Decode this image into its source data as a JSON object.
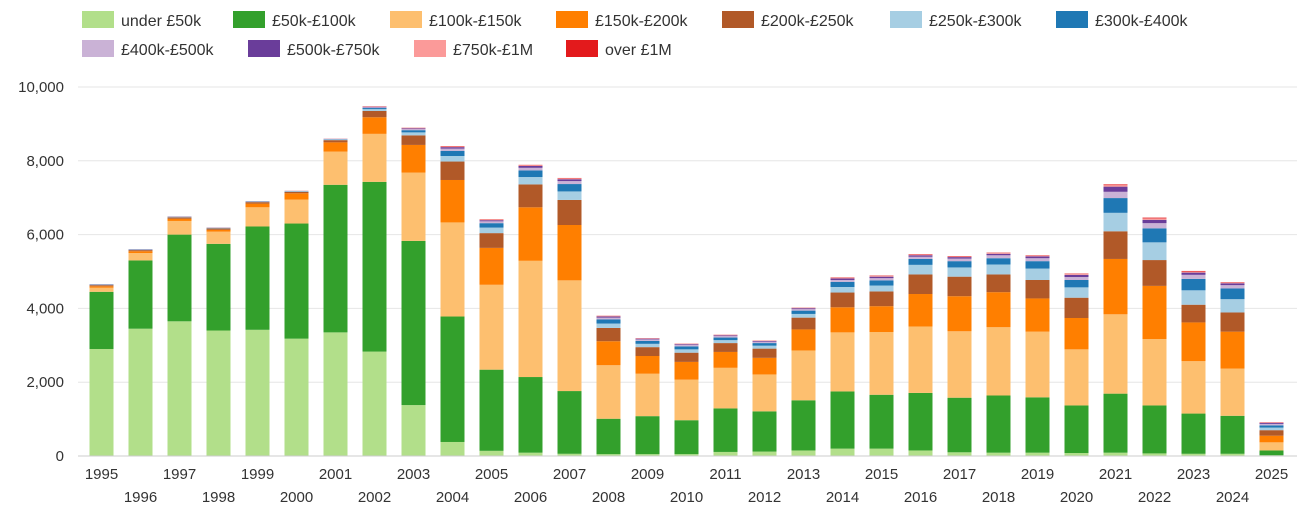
{
  "chart_data": {
    "type": "bar",
    "stacked": true,
    "title": "",
    "xlabel": "",
    "ylabel": "",
    "ylim": [
      0,
      10000
    ],
    "yticks": [
      "0",
      "2,000",
      "4,000",
      "6,000",
      "8,000",
      "10,000"
    ],
    "ytick_values": [
      0,
      2000,
      4000,
      6000,
      8000,
      10000
    ],
    "grid": true,
    "legend_position": "top",
    "categories": [
      "1995",
      "1996",
      "1997",
      "1998",
      "1999",
      "2000",
      "2001",
      "2002",
      "2003",
      "2004",
      "2005",
      "2006",
      "2007",
      "2008",
      "2009",
      "2010",
      "2011",
      "2012",
      "2013",
      "2014",
      "2015",
      "2016",
      "2017",
      "2018",
      "2019",
      "2020",
      "2021",
      "2022",
      "2023",
      "2024",
      "2025"
    ],
    "series": [
      {
        "name": "under £50k",
        "color": "#b2df8a",
        "values": [
          2900,
          3450,
          3650,
          3400,
          3420,
          3180,
          3350,
          2830,
          1380,
          380,
          140,
          90,
          60,
          50,
          50,
          50,
          110,
          120,
          150,
          200,
          200,
          150,
          100,
          90,
          90,
          80,
          90,
          70,
          60,
          60,
          20
        ]
      },
      {
        "name": "£50k-£100k",
        "color": "#33a02c",
        "values": [
          1550,
          1850,
          2350,
          2350,
          2800,
          3120,
          4000,
          4600,
          4450,
          3400,
          2200,
          2050,
          1700,
          960,
          1030,
          920,
          1180,
          1090,
          1360,
          1550,
          1460,
          1560,
          1480,
          1550,
          1500,
          1290,
          1600,
          1300,
          1090,
          1030,
          130
        ]
      },
      {
        "name": "£100k-£150k",
        "color": "#fdbf6f",
        "values": [
          110,
          200,
          370,
          330,
          520,
          650,
          900,
          1300,
          1850,
          2550,
          2300,
          3150,
          3000,
          1450,
          1150,
          1100,
          1100,
          1000,
          1350,
          1600,
          1700,
          1800,
          1800,
          1850,
          1780,
          1520,
          2150,
          1800,
          1420,
          1280,
          220
        ]
      },
      {
        "name": "£150k-£200k",
        "color": "#ff7f00",
        "values": [
          40,
          50,
          60,
          50,
          100,
          170,
          250,
          450,
          750,
          1150,
          1000,
          1450,
          1500,
          650,
          480,
          480,
          430,
          450,
          570,
          680,
          700,
          880,
          950,
          950,
          900,
          850,
          1500,
          1440,
          1050,
          1000,
          180
        ]
      },
      {
        "name": "£200k-£250k",
        "color": "#b15928",
        "values": [
          30,
          30,
          35,
          35,
          40,
          40,
          60,
          170,
          260,
          500,
          400,
          620,
          680,
          360,
          240,
          250,
          240,
          250,
          320,
          400,
          400,
          530,
          530,
          480,
          500,
          550,
          750,
          700,
          480,
          520,
          150
        ]
      },
      {
        "name": "£250k-£300k",
        "color": "#a6cee3",
        "values": [
          10,
          10,
          10,
          10,
          10,
          10,
          15,
          50,
          80,
          150,
          150,
          200,
          230,
          120,
          90,
          90,
          80,
          80,
          100,
          150,
          160,
          260,
          250,
          270,
          310,
          280,
          500,
          480,
          390,
          360,
          70
        ]
      },
      {
        "name": "£300k-£400k",
        "color": "#1f78b4",
        "values": [
          8,
          8,
          8,
          8,
          8,
          8,
          10,
          30,
          60,
          140,
          120,
          180,
          200,
          110,
          80,
          80,
          70,
          70,
          90,
          140,
          140,
          160,
          170,
          170,
          200,
          200,
          400,
          380,
          310,
          290,
          60
        ]
      },
      {
        "name": "£400k-£500k",
        "color": "#cab2d6",
        "values": [
          4,
          4,
          4,
          4,
          4,
          4,
          5,
          20,
          30,
          60,
          50,
          70,
          80,
          50,
          40,
          40,
          40,
          35,
          40,
          50,
          60,
          60,
          70,
          80,
          80,
          80,
          170,
          140,
          110,
          90,
          40
        ]
      },
      {
        "name": "£500k-£750k",
        "color": "#6a3d9a",
        "values": [
          3,
          3,
          3,
          3,
          3,
          3,
          4,
          15,
          20,
          40,
          30,
          50,
          50,
          30,
          20,
          20,
          20,
          20,
          25,
          40,
          40,
          40,
          40,
          40,
          50,
          60,
          140,
          90,
          60,
          50,
          30
        ]
      },
      {
        "name": "£750k-£1M",
        "color": "#fb9a99",
        "values": [
          2,
          2,
          2,
          2,
          2,
          2,
          3,
          10,
          10,
          20,
          15,
          20,
          25,
          15,
          10,
          10,
          10,
          10,
          10,
          20,
          20,
          20,
          20,
          20,
          20,
          25,
          40,
          40,
          30,
          20,
          15
        ]
      },
      {
        "name": "over £1M",
        "color": "#e31a1c",
        "values": [
          1,
          1,
          1,
          1,
          1,
          1,
          2,
          5,
          5,
          10,
          10,
          10,
          10,
          5,
          5,
          5,
          5,
          5,
          5,
          10,
          10,
          10,
          10,
          10,
          10,
          10,
          20,
          20,
          15,
          10,
          5
        ]
      }
    ]
  }
}
